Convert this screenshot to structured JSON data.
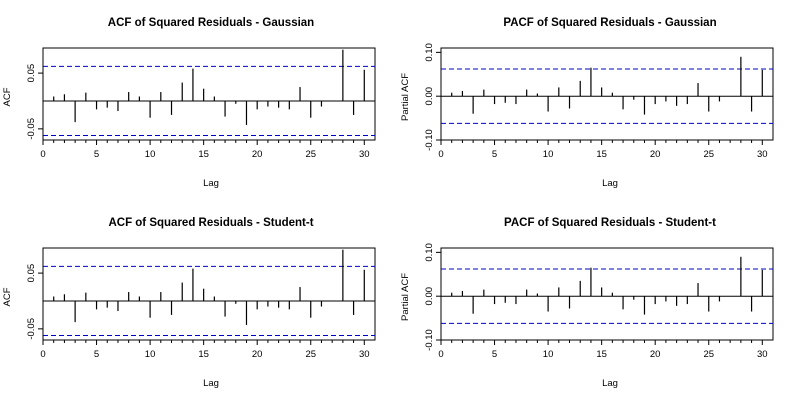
{
  "chart_data": [
    {
      "type": "bar",
      "title": "ACF of Squared Residuals - Gaussian",
      "xlabel": "Lag",
      "ylabel": "ACF",
      "xlim": [
        0,
        31
      ],
      "ylim": [
        -0.07,
        0.095
      ],
      "xticks": [
        "0",
        "5",
        "10",
        "15",
        "20",
        "25",
        "30"
      ],
      "yticks": [
        "-0.05",
        "0.05"
      ],
      "yticks_values": [
        -0.05,
        0.05
      ],
      "conf_band": 0.062,
      "band_color": "#0000cc",
      "lags": [
        1,
        2,
        3,
        4,
        5,
        6,
        7,
        8,
        9,
        10,
        11,
        12,
        13,
        14,
        15,
        16,
        17,
        18,
        19,
        20,
        21,
        22,
        23,
        24,
        25,
        26,
        27,
        28,
        29,
        30
      ],
      "values": [
        0.008,
        0.012,
        -0.038,
        0.015,
        -0.015,
        -0.012,
        -0.018,
        0.016,
        0.008,
        -0.03,
        0.016,
        -0.025,
        0.033,
        0.058,
        0.022,
        0.008,
        -0.028,
        -0.005,
        -0.043,
        -0.015,
        -0.01,
        -0.012,
        -0.015,
        0.025,
        -0.03,
        -0.01,
        0.0,
        0.092,
        -0.025,
        0.056
      ]
    },
    {
      "type": "bar",
      "title": "PACF of Squared Residuals - Gaussian",
      "xlabel": "Lag",
      "ylabel": "Partial ACF",
      "xlim": [
        0,
        31
      ],
      "ylim": [
        -0.1,
        0.11
      ],
      "xticks": [
        "0",
        "5",
        "10",
        "15",
        "20",
        "25",
        "30"
      ],
      "yticks": [
        "-0.10",
        "0.00",
        "0.10"
      ],
      "yticks_values": [
        -0.1,
        0.0,
        0.1
      ],
      "conf_band": 0.062,
      "band_color": "#0000cc",
      "lags": [
        1,
        2,
        3,
        4,
        5,
        6,
        7,
        8,
        9,
        10,
        11,
        12,
        13,
        14,
        15,
        16,
        17,
        18,
        19,
        20,
        21,
        22,
        23,
        24,
        25,
        26,
        27,
        28,
        29,
        30
      ],
      "values": [
        0.008,
        0.012,
        -0.04,
        0.015,
        -0.018,
        -0.015,
        -0.018,
        0.015,
        0.006,
        -0.035,
        0.02,
        -0.028,
        0.035,
        0.065,
        0.02,
        0.008,
        -0.03,
        -0.008,
        -0.042,
        -0.018,
        -0.012,
        -0.022,
        -0.018,
        0.03,
        -0.035,
        -0.012,
        0.0,
        0.09,
        -0.035,
        0.06
      ]
    },
    {
      "type": "bar",
      "title": "ACF of Squared Residuals - Student-t",
      "xlabel": "Lag",
      "ylabel": "ACF",
      "xlim": [
        0,
        31
      ],
      "ylim": [
        -0.07,
        0.095
      ],
      "xticks": [
        "0",
        "5",
        "10",
        "15",
        "20",
        "25",
        "30"
      ],
      "yticks": [
        "-0.05",
        "0.05"
      ],
      "yticks_values": [
        -0.05,
        0.05
      ],
      "conf_band": 0.062,
      "band_color": "#0000cc",
      "lags": [
        1,
        2,
        3,
        4,
        5,
        6,
        7,
        8,
        9,
        10,
        11,
        12,
        13,
        14,
        15,
        16,
        17,
        18,
        19,
        20,
        21,
        22,
        23,
        24,
        25,
        26,
        27,
        28,
        29,
        30
      ],
      "values": [
        0.008,
        0.012,
        -0.038,
        0.015,
        -0.015,
        -0.012,
        -0.018,
        0.016,
        0.008,
        -0.03,
        0.016,
        -0.025,
        0.033,
        0.058,
        0.022,
        0.008,
        -0.028,
        -0.005,
        -0.043,
        -0.015,
        -0.01,
        -0.012,
        -0.015,
        0.025,
        -0.03,
        -0.01,
        0.0,
        0.092,
        -0.025,
        0.056
      ]
    },
    {
      "type": "bar",
      "title": "PACF of Squared Residuals - Student-t",
      "xlabel": "Lag",
      "ylabel": "Partial ACF",
      "xlim": [
        0,
        31
      ],
      "ylim": [
        -0.1,
        0.11
      ],
      "xticks": [
        "0",
        "5",
        "10",
        "15",
        "20",
        "25",
        "30"
      ],
      "yticks": [
        "-0.10",
        "0.00",
        "0.10"
      ],
      "yticks_values": [
        -0.1,
        0.0,
        0.1
      ],
      "conf_band": 0.062,
      "band_color": "#0000cc",
      "lags": [
        1,
        2,
        3,
        4,
        5,
        6,
        7,
        8,
        9,
        10,
        11,
        12,
        13,
        14,
        15,
        16,
        17,
        18,
        19,
        20,
        21,
        22,
        23,
        24,
        25,
        26,
        27,
        28,
        29,
        30
      ],
      "values": [
        0.008,
        0.012,
        -0.04,
        0.015,
        -0.018,
        -0.015,
        -0.018,
        0.015,
        0.006,
        -0.035,
        0.02,
        -0.028,
        0.035,
        0.065,
        0.02,
        0.008,
        -0.03,
        -0.008,
        -0.042,
        -0.018,
        -0.012,
        -0.022,
        -0.018,
        0.03,
        -0.035,
        -0.012,
        0.0,
        0.09,
        -0.035,
        0.06
      ]
    }
  ]
}
